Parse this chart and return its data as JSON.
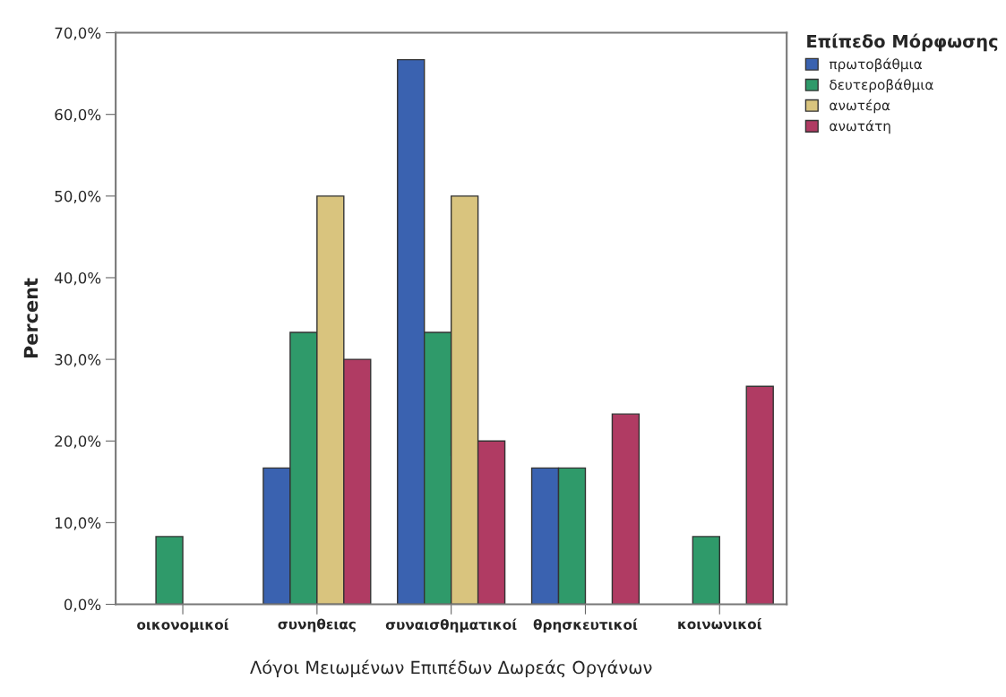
{
  "chart_data": {
    "type": "bar",
    "xlabel": "Λόγοι Μειωμένων Επιπέδων Δωρεάς Οργάνων",
    "ylabel": "Percent",
    "legend_title": "Επίπεδο Μόρφωσης",
    "categories": [
      "οικονομικοί",
      "συνηθειας",
      "συναισθηματικοί",
      "θρησκευτικοί",
      "κοινωνικοί"
    ],
    "series": [
      {
        "name": "πρωτοβάθμια",
        "color": "#3a62b0",
        "values": [
          null,
          16.7,
          66.7,
          16.7,
          null
        ]
      },
      {
        "name": "δευτεροβάθμια",
        "color": "#2f9a6a",
        "values": [
          8.3,
          33.3,
          33.3,
          16.7,
          8.3
        ]
      },
      {
        "name": "ανωτέρα",
        "color": "#d9c47e",
        "values": [
          null,
          50.0,
          50.0,
          null,
          null
        ]
      },
      {
        "name": "ανωτάτη",
        "color": "#b03b63",
        "values": [
          null,
          30.0,
          20.0,
          23.3,
          26.7
        ]
      }
    ],
    "ylim": [
      0,
      70
    ],
    "yticks": [
      {
        "value": 0,
        "label": "0,0%"
      },
      {
        "value": 10,
        "label": "10,0%"
      },
      {
        "value": 20,
        "label": "20,0%"
      },
      {
        "value": 30,
        "label": "30,0%"
      },
      {
        "value": 40,
        "label": "40,0%"
      },
      {
        "value": 50,
        "label": "50,0%"
      },
      {
        "value": 60,
        "label": "60,0%"
      },
      {
        "value": 70,
        "label": "70,0%"
      }
    ],
    "legend": "top right",
    "grid": false
  }
}
